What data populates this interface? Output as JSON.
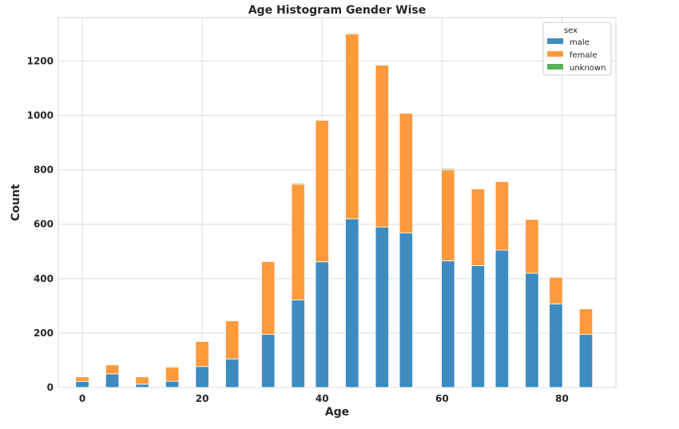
{
  "chart_data": {
    "type": "bar",
    "stacked": true,
    "title": "Age Histogram Gender Wise",
    "xlabel": "Age",
    "ylabel": "Count",
    "xlim": [
      -4,
      89
    ],
    "ylim": [
      0,
      1360
    ],
    "xticks": [
      0,
      20,
      40,
      60,
      80
    ],
    "yticks": [
      0,
      200,
      400,
      600,
      800,
      1000,
      1200
    ],
    "grid": true,
    "legend": {
      "title": "sex",
      "placement": "top-right"
    },
    "bin_width": 2.2,
    "bins": [
      0,
      5,
      10,
      15,
      20,
      25,
      31,
      36,
      40,
      45,
      50,
      54,
      61,
      66,
      70,
      75,
      79,
      84
    ],
    "series": [
      {
        "name": "male",
        "color": "#3d8bbf",
        "values": [
          22,
          50,
          12,
          23,
          77,
          105,
          195,
          322,
          462,
          620,
          590,
          568,
          466,
          448,
          505,
          420,
          307,
          195
        ]
      },
      {
        "name": "female",
        "color": "#ff9a3c",
        "values": [
          17,
          33,
          27,
          52,
          92,
          140,
          268,
          425,
          520,
          680,
          595,
          440,
          335,
          282,
          252,
          198,
          98,
          94
        ]
      },
      {
        "name": "unknown",
        "color": "#59b259",
        "values": [
          0,
          0,
          0,
          0,
          0,
          0,
          0,
          4,
          0,
          3,
          0,
          0,
          4,
          0,
          0,
          0,
          0,
          0
        ]
      }
    ]
  }
}
